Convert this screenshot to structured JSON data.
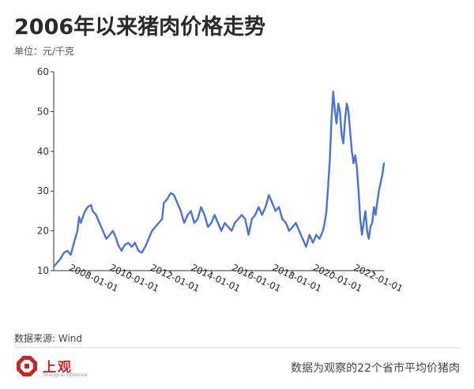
{
  "title": "2006年以来猪肉价格走势",
  "unit_label": "单位：元/千克",
  "source": "数据来源: Wind",
  "footer_note": "数据为观察的22个省市平均价猪肉",
  "logo": {
    "name": "上观",
    "sub": "Shanghai Observer",
    "color": "#c62828"
  },
  "colors": {
    "line": "#4a72d8",
    "axis": "#333333"
  },
  "chart_data": {
    "type": "line",
    "title": "2006年以来猪肉价格走势",
    "ylabel": "元/千克",
    "xlabel": "",
    "ylim": [
      10,
      60
    ],
    "xlim": [
      "2006-04-01",
      "2022-07-01"
    ],
    "yticks": [
      10,
      20,
      30,
      40,
      50,
      60
    ],
    "xticks": [
      "2008-01-01",
      "2010-01-01",
      "2012-01-01",
      "2014-01-01",
      "2016-01-01",
      "2018-01-01",
      "2020-01-01",
      "2022-01-01"
    ],
    "grid": false,
    "series": [
      {
        "name": "",
        "x": [
          "2006-04-01",
          "2006-06-01",
          "2006-08-01",
          "2006-10-01",
          "2006-12-01",
          "2007-02-01",
          "2007-04-01",
          "2007-06-01",
          "2007-07-01",
          "2007-08-01",
          "2007-10-01",
          "2007-12-01",
          "2008-02-01",
          "2008-03-01",
          "2008-05-01",
          "2008-07-01",
          "2008-09-01",
          "2008-11-01",
          "2009-01-01",
          "2009-03-01",
          "2009-05-01",
          "2009-06-01",
          "2009-08-01",
          "2009-10-01",
          "2009-12-01",
          "2010-02-01",
          "2010-04-01",
          "2010-06-01",
          "2010-08-01",
          "2010-10-01",
          "2010-12-01",
          "2011-02-01",
          "2011-04-01",
          "2011-06-01",
          "2011-08-01",
          "2011-09-01",
          "2011-11-01",
          "2012-01-01",
          "2012-03-01",
          "2012-05-01",
          "2012-07-01",
          "2012-09-01",
          "2012-11-01",
          "2013-01-01",
          "2013-03-01",
          "2013-05-01",
          "2013-07-01",
          "2013-09-01",
          "2013-11-01",
          "2014-01-01",
          "2014-03-01",
          "2014-05-01",
          "2014-07-01",
          "2014-09-01",
          "2014-11-01",
          "2015-01-01",
          "2015-03-01",
          "2015-05-01",
          "2015-07-01",
          "2015-09-01",
          "2015-11-01",
          "2016-01-01",
          "2016-03-01",
          "2016-05-01",
          "2016-07-01",
          "2016-09-01",
          "2016-11-01",
          "2017-01-01",
          "2017-03-01",
          "2017-05-01",
          "2017-07-01",
          "2017-09-01",
          "2017-11-01",
          "2018-01-01",
          "2018-03-01",
          "2018-05-01",
          "2018-07-01",
          "2018-09-01",
          "2018-11-01",
          "2019-01-01",
          "2019-03-01",
          "2019-05-01",
          "2019-07-01",
          "2019-08-01",
          "2019-09-01",
          "2019-10-01",
          "2019-11-01",
          "2019-12-01",
          "2020-01-01",
          "2020-02-01",
          "2020-03-01",
          "2020-04-01",
          "2020-05-01",
          "2020-06-01",
          "2020-07-01",
          "2020-08-01",
          "2020-09-01",
          "2020-10-01",
          "2020-11-01",
          "2020-12-01",
          "2021-01-01",
          "2021-02-01",
          "2021-03-01",
          "2021-04-01",
          "2021-05-01",
          "2021-06-01",
          "2021-07-01",
          "2021-08-01",
          "2021-09-01",
          "2021-10-01",
          "2021-11-01",
          "2021-12-01",
          "2022-01-01",
          "2022-02-01",
          "2022-03-01",
          "2022-04-01",
          "2022-05-01",
          "2022-06-01",
          "2022-07-01"
        ],
        "y": [
          11,
          12,
          13,
          14.5,
          15,
          14,
          17,
          20,
          23.5,
          22,
          24.5,
          26,
          26.5,
          25,
          24,
          22,
          20,
          18,
          19,
          20,
          18,
          16.5,
          15,
          16.5,
          17,
          16,
          17,
          15,
          14.5,
          16,
          18,
          20,
          21,
          22,
          23,
          27,
          28,
          29.5,
          29,
          27,
          25,
          22,
          24,
          25,
          22,
          23,
          26,
          24,
          21,
          22,
          24,
          22,
          20,
          22,
          21,
          20,
          22,
          23,
          24,
          23,
          19,
          23,
          24,
          26,
          24,
          26,
          29,
          27,
          25,
          26,
          23,
          22,
          20,
          21,
          22,
          20,
          18,
          16,
          19,
          17,
          19,
          18,
          20,
          22,
          25,
          31,
          38,
          48,
          55,
          50,
          47,
          52,
          50,
          44,
          42,
          48,
          52,
          50,
          45,
          40,
          37,
          39,
          36,
          30,
          23,
          19,
          22,
          25,
          20,
          18,
          21,
          22,
          26,
          24,
          27,
          30,
          32,
          34,
          37
        ]
      }
    ]
  }
}
